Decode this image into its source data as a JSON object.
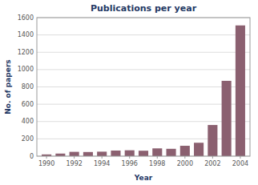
{
  "chart_data": {
    "type": "bar",
    "title": "Publications per year",
    "x_label": "Year",
    "y_label": "No. of papers",
    "x": [
      1990,
      1991,
      1992,
      1993,
      1994,
      1995,
      1996,
      1997,
      1998,
      1999,
      2000,
      2001,
      2002,
      2003,
      2004
    ],
    "values": [
      20,
      30,
      50,
      48,
      52,
      65,
      68,
      63,
      90,
      85,
      120,
      155,
      360,
      870,
      1510
    ],
    "color": "#8B6070",
    "xlim": [
      1989.3,
      2004.7
    ],
    "xticks": [
      1990,
      1992,
      1994,
      1996,
      1998,
      2000,
      2002,
      2004
    ],
    "ylim": [
      0,
      1600
    ],
    "yticks": [
      0,
      200,
      400,
      600,
      800,
      1000,
      1200,
      1400,
      1600
    ],
    "grid": true
  }
}
